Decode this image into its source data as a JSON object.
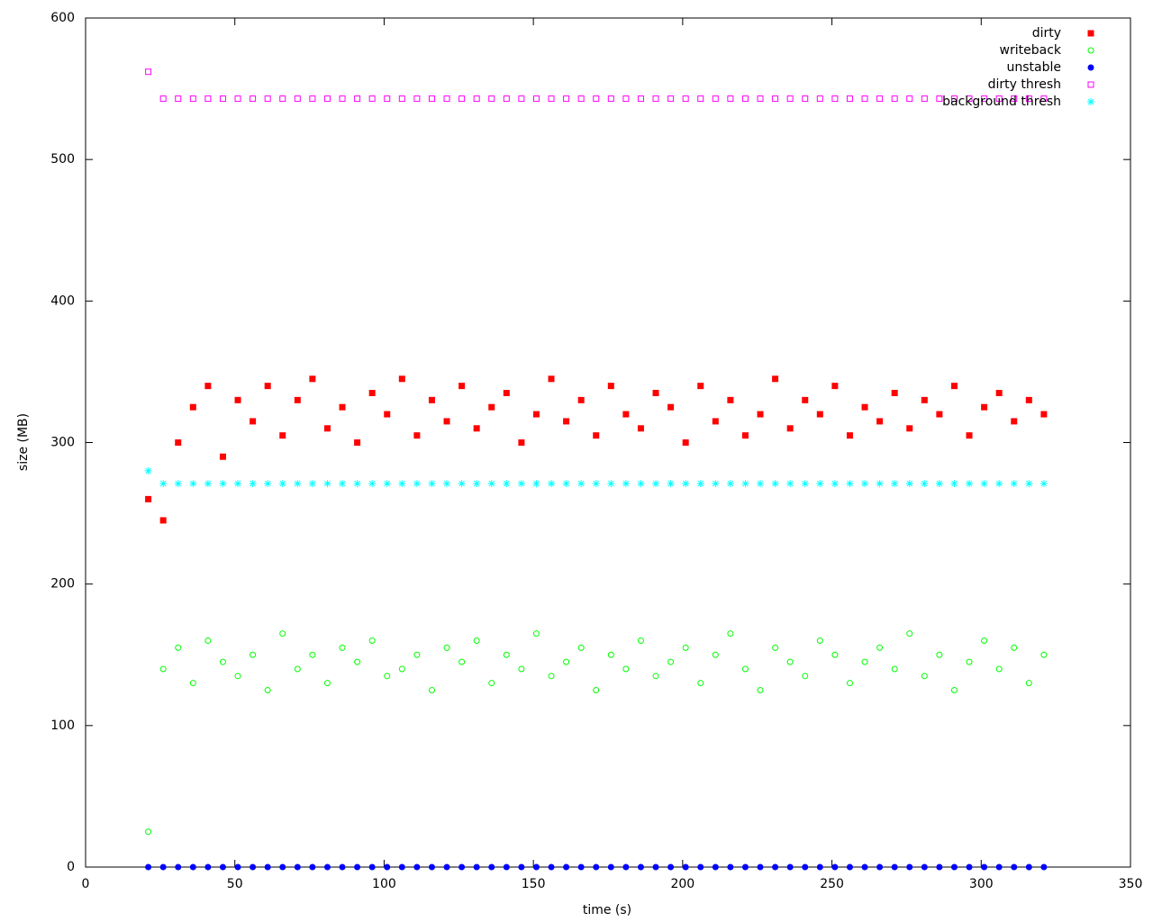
{
  "chart_data": {
    "type": "scatter",
    "xlabel": "time (s)",
    "ylabel": "size (MB)",
    "xlim": [
      0,
      350
    ],
    "xticks": [
      0,
      50,
      100,
      150,
      200,
      250,
      300,
      350
    ],
    "ylim": [
      0,
      600
    ],
    "yticks": [
      0,
      100,
      200,
      300,
      400,
      500,
      600
    ],
    "legend": "top-right",
    "x": [
      21,
      26,
      31,
      36,
      41,
      46,
      51,
      56,
      61,
      66,
      71,
      76,
      81,
      86,
      91,
      96,
      101,
      106,
      111,
      116,
      121,
      126,
      131,
      136,
      141,
      146,
      151,
      156,
      161,
      166,
      171,
      176,
      181,
      186,
      191,
      196,
      201,
      206,
      211,
      216,
      221,
      226,
      231,
      236,
      241,
      246,
      251,
      256,
      261,
      266,
      271,
      276,
      281,
      286,
      291,
      296,
      301,
      306,
      311,
      316,
      321
    ],
    "series": [
      {
        "name": "dirty",
        "color": "#ff0000",
        "marker": "filled-square",
        "values": [
          260,
          245,
          300,
          325,
          340,
          290,
          330,
          315,
          340,
          305,
          330,
          345,
          310,
          325,
          300,
          335,
          320,
          345,
          305,
          330,
          315,
          340,
          310,
          325,
          335,
          300,
          320,
          345,
          315,
          330,
          305,
          340,
          320,
          310,
          335,
          325,
          300,
          340,
          315,
          330,
          305,
          320,
          345,
          310,
          330,
          320,
          340,
          305,
          325,
          315,
          335,
          310,
          330,
          320,
          340,
          305,
          325,
          335,
          315,
          330,
          320
        ]
      },
      {
        "name": "writeback",
        "color": "#00ff00",
        "marker": "open-circle",
        "values": [
          25,
          140,
          155,
          130,
          160,
          145,
          135,
          150,
          125,
          165,
          140,
          150,
          130,
          155,
          145,
          160,
          135,
          140,
          150,
          125,
          155,
          145,
          160,
          130,
          150,
          140,
          165,
          135,
          145,
          155,
          125,
          150,
          140,
          160,
          135,
          145,
          155,
          130,
          150,
          165,
          140,
          125,
          155,
          145,
          135,
          160,
          150,
          130,
          145,
          155,
          140,
          165,
          135,
          150,
          125,
          145,
          160,
          140,
          155,
          130,
          150
        ]
      },
      {
        "name": "unstable",
        "color": "#0000ff",
        "marker": "filled-circle",
        "values": [
          0,
          0,
          0,
          0,
          0,
          0,
          0,
          0,
          0,
          0,
          0,
          0,
          0,
          0,
          0,
          0,
          0,
          0,
          0,
          0,
          0,
          0,
          0,
          0,
          0,
          0,
          0,
          0,
          0,
          0,
          0,
          0,
          0,
          0,
          0,
          0,
          0,
          0,
          0,
          0,
          0,
          0,
          0,
          0,
          0,
          0,
          0,
          0,
          0,
          0,
          0,
          0,
          0,
          0,
          0,
          0,
          0,
          0,
          0,
          0,
          0
        ]
      },
      {
        "name": "dirty thresh",
        "color": "#ff00ff",
        "marker": "open-square",
        "values": [
          562,
          543,
          543,
          543,
          543,
          543,
          543,
          543,
          543,
          543,
          543,
          543,
          543,
          543,
          543,
          543,
          543,
          543,
          543,
          543,
          543,
          543,
          543,
          543,
          543,
          543,
          543,
          543,
          543,
          543,
          543,
          543,
          543,
          543,
          543,
          543,
          543,
          543,
          543,
          543,
          543,
          543,
          543,
          543,
          543,
          543,
          543,
          543,
          543,
          543,
          543,
          543,
          543,
          543,
          543,
          543,
          543,
          543,
          543,
          543,
          543
        ]
      },
      {
        "name": "background thresh",
        "color": "#00ffff",
        "marker": "asterisk",
        "values": [
          280,
          271,
          271,
          271,
          271,
          271,
          271,
          271,
          271,
          271,
          271,
          271,
          271,
          271,
          271,
          271,
          271,
          271,
          271,
          271,
          271,
          271,
          271,
          271,
          271,
          271,
          271,
          271,
          271,
          271,
          271,
          271,
          271,
          271,
          271,
          271,
          271,
          271,
          271,
          271,
          271,
          271,
          271,
          271,
          271,
          271,
          271,
          271,
          271,
          271,
          271,
          271,
          271,
          271,
          271,
          271,
          271,
          271,
          271,
          271,
          271
        ]
      }
    ]
  }
}
